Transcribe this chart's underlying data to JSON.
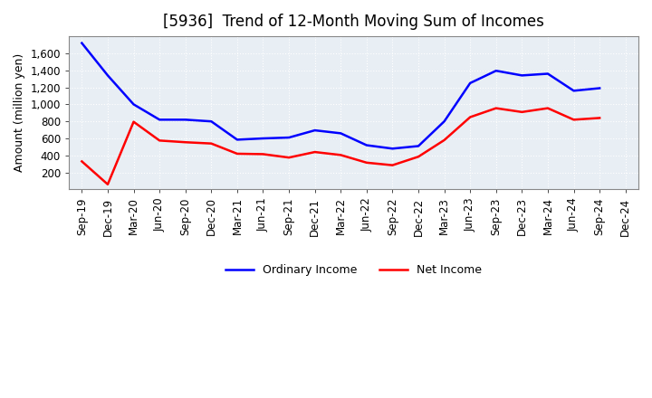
{
  "title": "[5936]  Trend of 12-Month Moving Sum of Incomes",
  "ylabel": "Amount (million yen)",
  "x_labels": [
    "Sep-19",
    "Dec-19",
    "Mar-20",
    "Jun-20",
    "Sep-20",
    "Dec-20",
    "Mar-21",
    "Jun-21",
    "Sep-21",
    "Dec-21",
    "Mar-22",
    "Jun-22",
    "Sep-22",
    "Dec-22",
    "Mar-23",
    "Jun-23",
    "Sep-23",
    "Dec-23",
    "Mar-24",
    "Jun-24",
    "Sep-24",
    "Dec-24"
  ],
  "ordinary_income": [
    1720,
    1340,
    1000,
    820,
    820,
    800,
    585,
    600,
    610,
    695,
    660,
    520,
    480,
    510,
    800,
    1250,
    1395,
    1340,
    1360,
    1160,
    1190,
    null
  ],
  "net_income": [
    330,
    60,
    795,
    575,
    555,
    540,
    420,
    415,
    375,
    440,
    405,
    315,
    285,
    385,
    580,
    850,
    955,
    910,
    955,
    820,
    840,
    null
  ],
  "ordinary_color": "#0000ff",
  "net_color": "#ff0000",
  "ylim_min": 0,
  "ylim_max": 1800,
  "yticks": [
    200,
    400,
    600,
    800,
    1000,
    1200,
    1400,
    1600
  ],
  "plot_bg_color": "#e8eef4",
  "fig_bg_color": "#ffffff",
  "grid_color": "#ffffff",
  "title_fontsize": 12,
  "axis_label_fontsize": 9,
  "tick_fontsize": 8.5,
  "legend_fontsize": 9,
  "line_width": 1.8
}
